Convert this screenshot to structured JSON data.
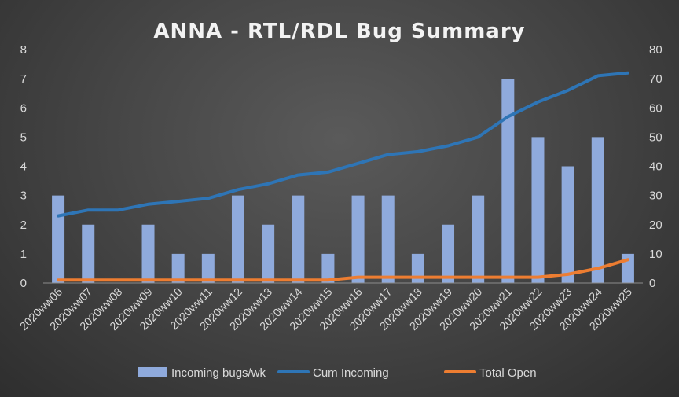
{
  "chart_data": {
    "type": "bar",
    "title": "ANNA - RTL/RDL Bug Summary",
    "categories": [
      "2020ww06",
      "2020ww07",
      "2020ww08",
      "2020ww09",
      "2020ww10",
      "2020ww11",
      "2020ww12",
      "2020ww13",
      "2020ww14",
      "2020ww15",
      "2020ww16",
      "2020ww17",
      "2020ww18",
      "2020ww19",
      "2020ww20",
      "2020ww21",
      "2020ww22",
      "2020ww23",
      "2020ww24",
      "2020ww25"
    ],
    "y_left": {
      "range": [
        0,
        8
      ],
      "ticks": [
        "0",
        "1",
        "2",
        "3",
        "4",
        "5",
        "6",
        "7",
        "8"
      ]
    },
    "y_right": {
      "range": [
        0,
        80
      ],
      "ticks": [
        "0",
        "10",
        "20",
        "30",
        "40",
        "50",
        "60",
        "70",
        "80"
      ]
    },
    "series": [
      {
        "name": "Incoming bugs/wk",
        "type": "bar",
        "axis": "left",
        "color": "#8faadc",
        "values": [
          3,
          2,
          0,
          2,
          1,
          1,
          3,
          2,
          3,
          1,
          3,
          3,
          1,
          2,
          3,
          7,
          5,
          4,
          5,
          1
        ]
      },
      {
        "name": "Cum Incoming",
        "type": "line",
        "axis": "right",
        "color": "#2e75b6",
        "values": [
          23,
          25,
          25,
          27,
          28,
          29,
          32,
          34,
          37,
          38,
          41,
          44,
          45,
          47,
          50,
          57,
          62,
          66,
          71,
          72
        ]
      },
      {
        "name": "Total Open",
        "type": "line",
        "axis": "right",
        "color": "#ed7d31",
        "values": [
          1,
          1,
          1,
          1,
          1,
          1,
          1,
          1,
          1,
          1,
          2,
          2,
          2,
          2,
          2,
          2,
          2,
          3,
          5,
          8
        ]
      }
    ],
    "grid": false,
    "legend_position": "bottom"
  }
}
